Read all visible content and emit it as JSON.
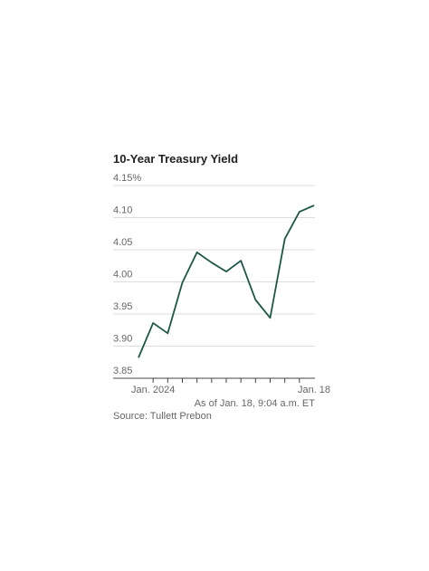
{
  "chart_data": {
    "type": "line",
    "title": "10-Year Treasury Yield",
    "categories": [
      null,
      "Jan. 2024",
      null,
      null,
      null,
      null,
      null,
      null,
      null,
      null,
      null,
      null,
      "Jan. 18"
    ],
    "series": [
      {
        "name": "10-Year Treasury Yield",
        "color": "#1d5748",
        "values": [
          3.882,
          3.936,
          3.92,
          3.999,
          4.046,
          4.03,
          4.016,
          4.033,
          3.972,
          3.944,
          4.067,
          4.109,
          4.119
        ]
      }
    ],
    "ylim": [
      3.85,
      4.15
    ],
    "yticks": [
      3.85,
      {
        "value": 3.9,
        "label": "3.90"
      },
      3.95,
      {
        "value": 4.0,
        "label": "4.00"
      },
      4.05,
      {
        "value": 4.1,
        "label": "4.10"
      },
      {
        "value": 4.15,
        "label": "4.15%"
      }
    ],
    "grid": true,
    "note": "As of Jan. 18, 9:04 a.m. ET",
    "source": "Source: Tullett Prebon"
  }
}
